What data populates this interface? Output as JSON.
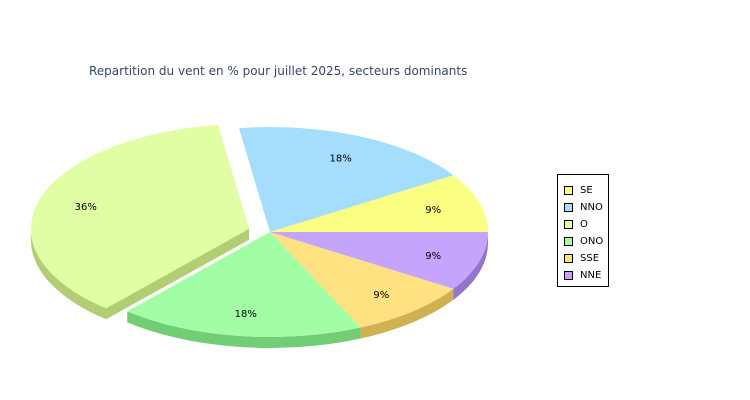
{
  "chart_data": {
    "type": "pie",
    "title": "Repartition du vent en % pour juillet 2025, secteurs dominants",
    "slices": [
      {
        "name": "SE",
        "value": 9,
        "label": "9%",
        "color": "#fafe82",
        "side": "#c9cb52",
        "exploded": false
      },
      {
        "name": "NNO",
        "value": 18,
        "label": "18%",
        "color": "#a4defc",
        "side": "#74aecc",
        "exploded": false
      },
      {
        "name": "O",
        "value": 36,
        "label": "36%",
        "color": "#e2fea4",
        "side": "#b2ce74",
        "exploded": true
      },
      {
        "name": "ONO",
        "value": 18,
        "label": "18%",
        "color": "#a2fea4",
        "side": "#72ce74",
        "exploded": false
      },
      {
        "name": "SSE",
        "value": 9,
        "label": "9%",
        "color": "#fee282",
        "side": "#ceb252",
        "exploded": false
      },
      {
        "name": "NNE",
        "value": 9,
        "label": "9%",
        "color": "#c4a4fc",
        "side": "#9474cc",
        "exploded": false
      }
    ],
    "legend_position": "right"
  }
}
